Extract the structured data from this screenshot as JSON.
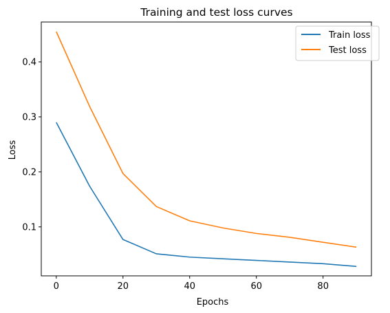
{
  "chart_data": {
    "type": "line",
    "title": "Training and test loss curves",
    "xlabel": "Epochs",
    "ylabel": "Loss",
    "x": [
      0,
      10,
      20,
      30,
      40,
      50,
      60,
      70,
      80,
      90
    ],
    "xlim": [
      -4.5,
      94.5
    ],
    "ylim": [
      0.0109,
      0.4725
    ],
    "xticks": [
      0,
      20,
      40,
      60,
      80
    ],
    "yticks": [
      0.1,
      0.2,
      0.3,
      0.4
    ],
    "xtick_labels": [
      "0",
      "20",
      "40",
      "60",
      "80"
    ],
    "ytick_labels": [
      "0.1",
      "0.2",
      "0.3",
      "0.4"
    ],
    "grid": false,
    "legend_position": "top-right",
    "series": [
      {
        "name": "Train loss",
        "color": "#1f77b4",
        "values": [
          0.29,
          0.174,
          0.077,
          0.051,
          0.045,
          0.042,
          0.039,
          0.036,
          0.033,
          0.028
        ]
      },
      {
        "name": "Test loss",
        "color": "#ff7f0e",
        "values": [
          0.455,
          0.319,
          0.197,
          0.137,
          0.111,
          0.098,
          0.088,
          0.081,
          0.072,
          0.063
        ]
      }
    ]
  }
}
